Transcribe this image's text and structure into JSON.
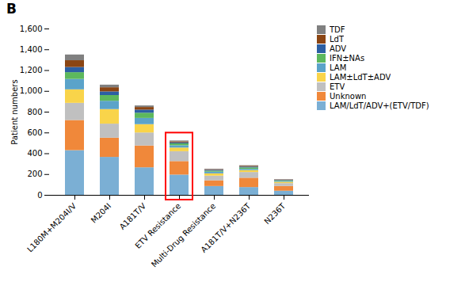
{
  "chart_data": {
    "type": "bar",
    "stacked": true,
    "title": "B",
    "categories": [
      "L180M+M204I/V",
      "M204I",
      "A181T/V",
      "ETV Resistance",
      "Multi-Drug Resistance",
      "A181T/V+N236T",
      "N236T"
    ],
    "series": [
      {
        "name": "LAM/LdT/ADV+(ETV/TDF)",
        "color": "#7bafd4",
        "values": [
          430,
          365,
          265,
          195,
          85,
          75,
          40
        ]
      },
      {
        "name": "Unknown",
        "color": "#f0883a",
        "values": [
          290,
          185,
          210,
          130,
          55,
          90,
          45
        ]
      },
      {
        "name": "ETV",
        "color": "#c0c0c0",
        "values": [
          165,
          135,
          125,
          95,
          45,
          55,
          28
        ]
      },
      {
        "name": "LAM±LdT±ADV",
        "color": "#f9d44a",
        "values": [
          130,
          140,
          80,
          35,
          22,
          18,
          12
        ]
      },
      {
        "name": "LAM",
        "color": "#5ba3c9",
        "values": [
          100,
          80,
          60,
          22,
          16,
          12,
          7
        ]
      },
      {
        "name": "IFN±NAs",
        "color": "#5db85d",
        "values": [
          65,
          55,
          50,
          18,
          10,
          14,
          7
        ]
      },
      {
        "name": "ADV",
        "color": "#2c5fa3",
        "values": [
          50,
          35,
          30,
          10,
          8,
          8,
          5
        ]
      },
      {
        "name": "LdT",
        "color": "#8b4513",
        "values": [
          65,
          40,
          25,
          10,
          6,
          8,
          4
        ]
      },
      {
        "name": "TDF",
        "color": "#808080",
        "values": [
          55,
          25,
          15,
          8,
          5,
          5,
          3
        ]
      }
    ],
    "ylabel": "Patient numbers",
    "ylim": [
      0,
      1600
    ],
    "yticks": [
      0,
      200,
      400,
      600,
      800,
      1000,
      1200,
      1400,
      1600
    ],
    "grid": false,
    "legend": "right",
    "highlight": {
      "category": "ETV Resistance",
      "color": "red"
    }
  }
}
